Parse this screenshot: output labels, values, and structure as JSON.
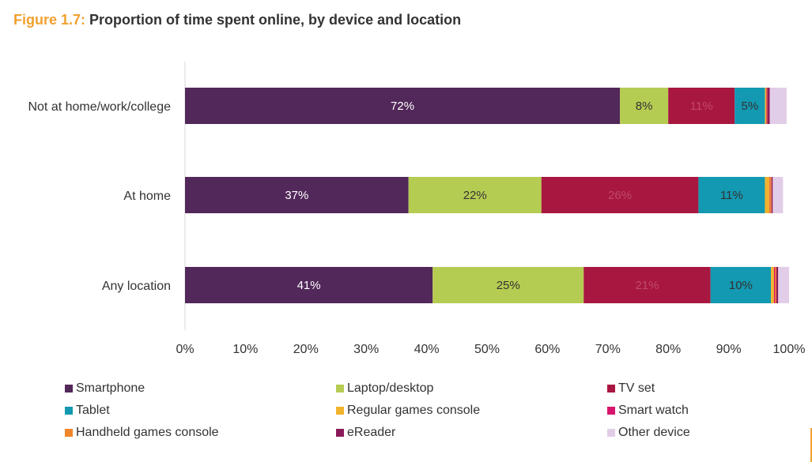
{
  "figure_number": "Figure 1.7:",
  "figure_title": "Proportion of time spent online, by device and location",
  "colors": {
    "Smartphone": "#52285a",
    "Laptop/desktop": "#b5cc52",
    "TV set": "#a8173f",
    "Tablet": "#1399b1",
    "Regular games console": "#f2b32c",
    "Smart watch": "#d8156e",
    "Handheld games console": "#f0852a",
    "eReader": "#8c1a5a",
    "Other device": "#e2cde8"
  },
  "chart_data": {
    "type": "bar",
    "orientation": "horizontal",
    "stacked": true,
    "categories": [
      "Not at home/work/college",
      "At home",
      "Any location"
    ],
    "series": [
      {
        "name": "Smartphone",
        "values": [
          72,
          37,
          41
        ],
        "labels": [
          "72%",
          "37%",
          "41%"
        ]
      },
      {
        "name": "Laptop/desktop",
        "values": [
          8,
          22,
          25
        ],
        "labels": [
          "8%",
          "22%",
          "25%"
        ]
      },
      {
        "name": "TV set",
        "values": [
          11,
          26,
          21
        ],
        "labels": [
          "11%",
          "26%",
          "21%"
        ]
      },
      {
        "name": "Tablet",
        "values": [
          5,
          11,
          10
        ],
        "labels": [
          "5%",
          "11%",
          "10%"
        ]
      },
      {
        "name": "Regular games console",
        "values": [
          0.2,
          0.8,
          0.5
        ],
        "labels": [
          "",
          "",
          ""
        ]
      },
      {
        "name": "Smart watch",
        "values": [
          0.1,
          0.1,
          0.2
        ],
        "labels": [
          "",
          "",
          ""
        ]
      },
      {
        "name": "Handheld games console",
        "values": [
          0.1,
          0.2,
          0.2
        ],
        "labels": [
          "",
          "",
          ""
        ]
      },
      {
        "name": "eReader",
        "values": [
          0.4,
          0.2,
          0.3
        ],
        "labels": [
          "",
          "",
          ""
        ]
      },
      {
        "name": "Other device",
        "values": [
          2.8,
          1.7,
          1.8
        ],
        "labels": [
          "",
          "",
          ""
        ]
      }
    ],
    "xlim": [
      0,
      100
    ],
    "xticks": [
      "0%",
      "10%",
      "20%",
      "30%",
      "40%",
      "50%",
      "60%",
      "70%",
      "80%",
      "90%",
      "100%"
    ],
    "grid": false,
    "legend_position": "bottom"
  }
}
